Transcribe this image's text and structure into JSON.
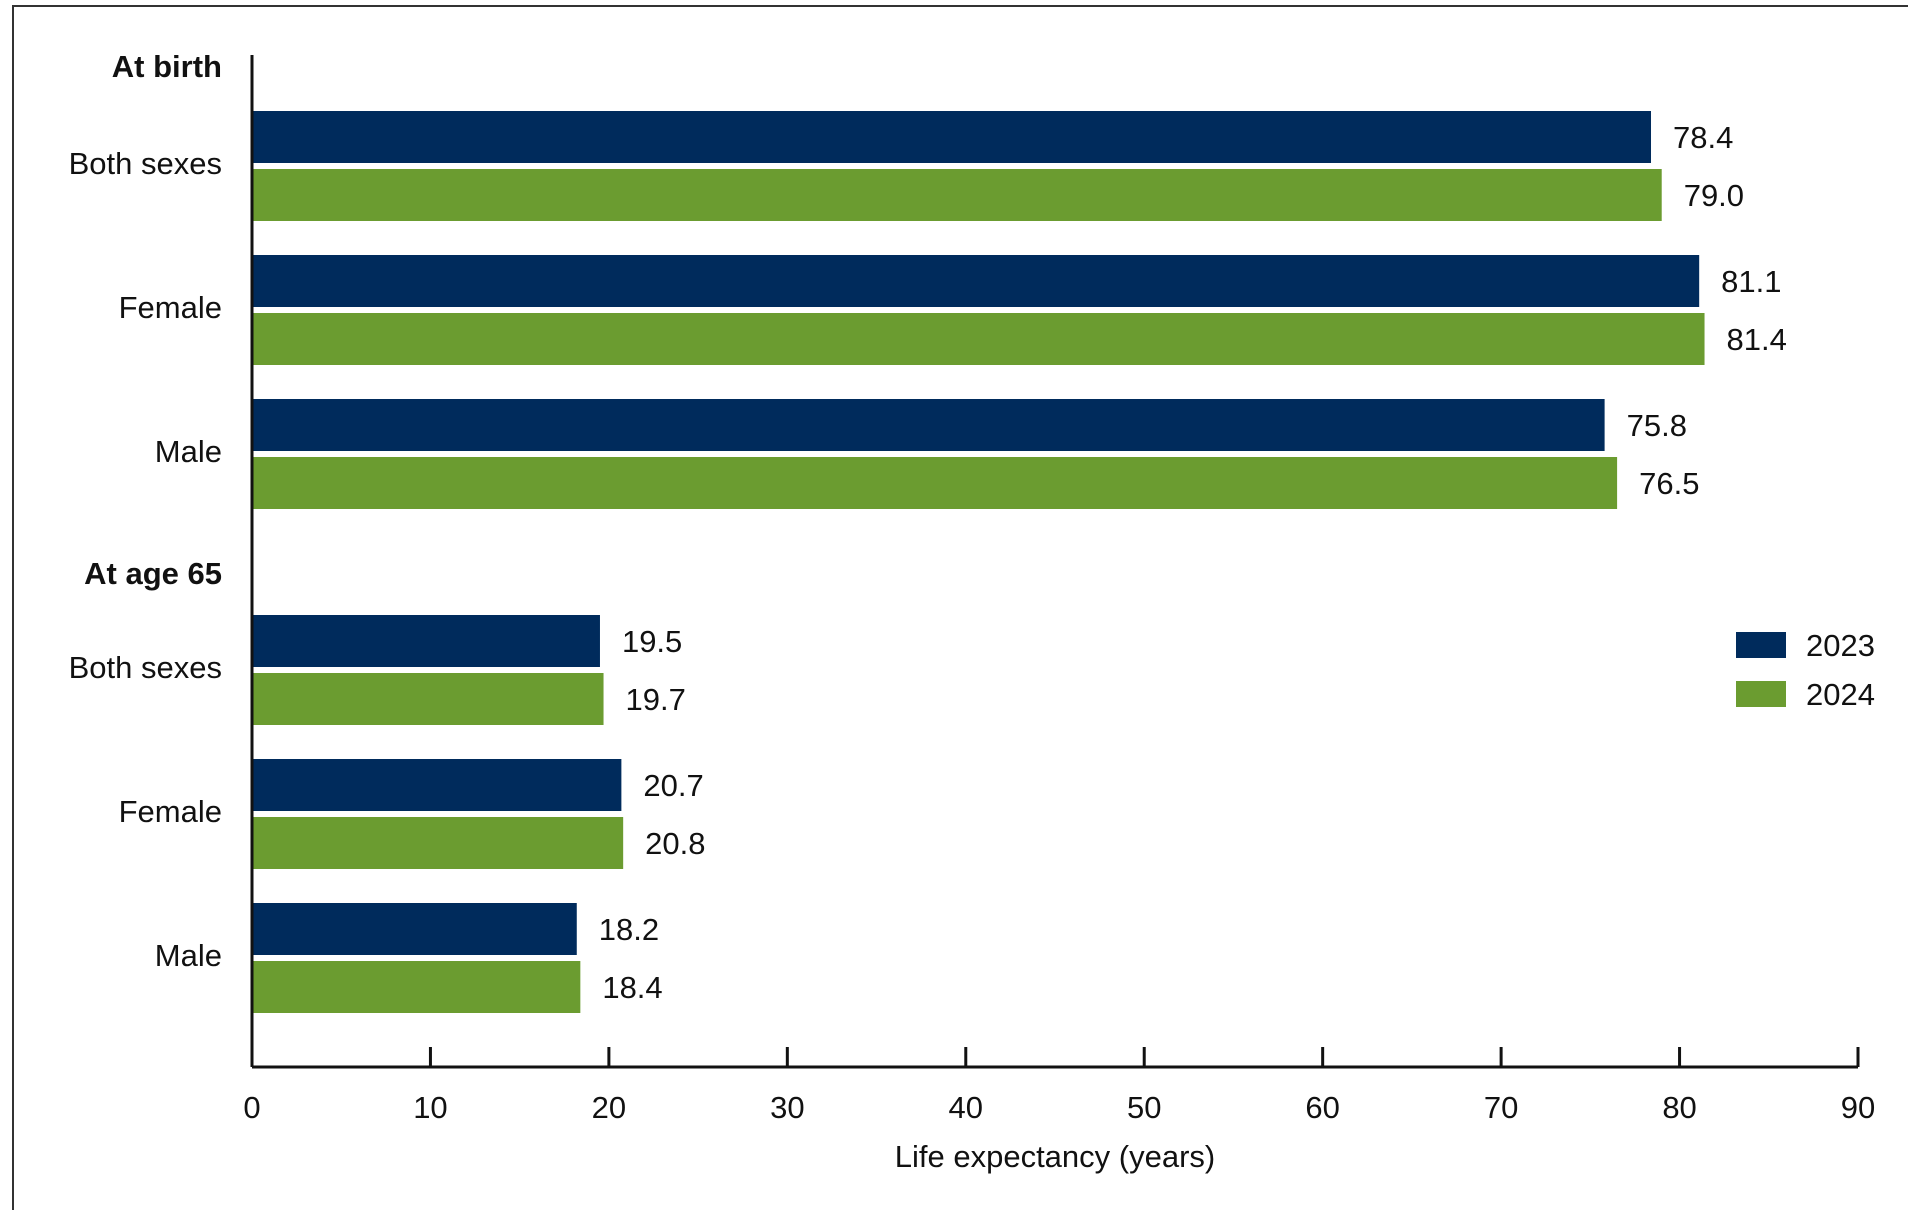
{
  "chart_data": {
    "type": "bar",
    "orientation": "horizontal",
    "groups": [
      {
        "label": "At birth",
        "categories": [
          "Both sexes",
          "Female",
          "Male"
        ],
        "values_2023": [
          78.4,
          81.1,
          75.8
        ],
        "values_2024": [
          79.0,
          81.4,
          76.5
        ]
      },
      {
        "label": "At age 65",
        "categories": [
          "Both sexes",
          "Female",
          "Male"
        ],
        "values_2023": [
          19.5,
          20.7,
          18.2
        ],
        "values_2024": [
          19.7,
          20.8,
          18.4
        ]
      }
    ],
    "series": [
      {
        "name": "2023",
        "color": "#002b5c"
      },
      {
        "name": "2024",
        "color": "#6b9c30"
      }
    ],
    "value_labels": {
      "2023": [
        "78.4",
        "81.1",
        "75.8",
        "19.5",
        "20.7",
        "18.2"
      ],
      "2024": [
        "79.0",
        "81.4",
        "76.5",
        "19.7",
        "20.8",
        "18.4"
      ]
    },
    "xlabel": "Life expectancy (years)",
    "xlim": [
      0,
      90
    ],
    "xticks": [
      0,
      10,
      20,
      30,
      40,
      50,
      60,
      70,
      80,
      90
    ],
    "xtick_labels": [
      "0",
      "10",
      "20",
      "30",
      "40",
      "50",
      "60",
      "70",
      "80",
      "90"
    ],
    "grid": false,
    "legend_position": "right"
  }
}
